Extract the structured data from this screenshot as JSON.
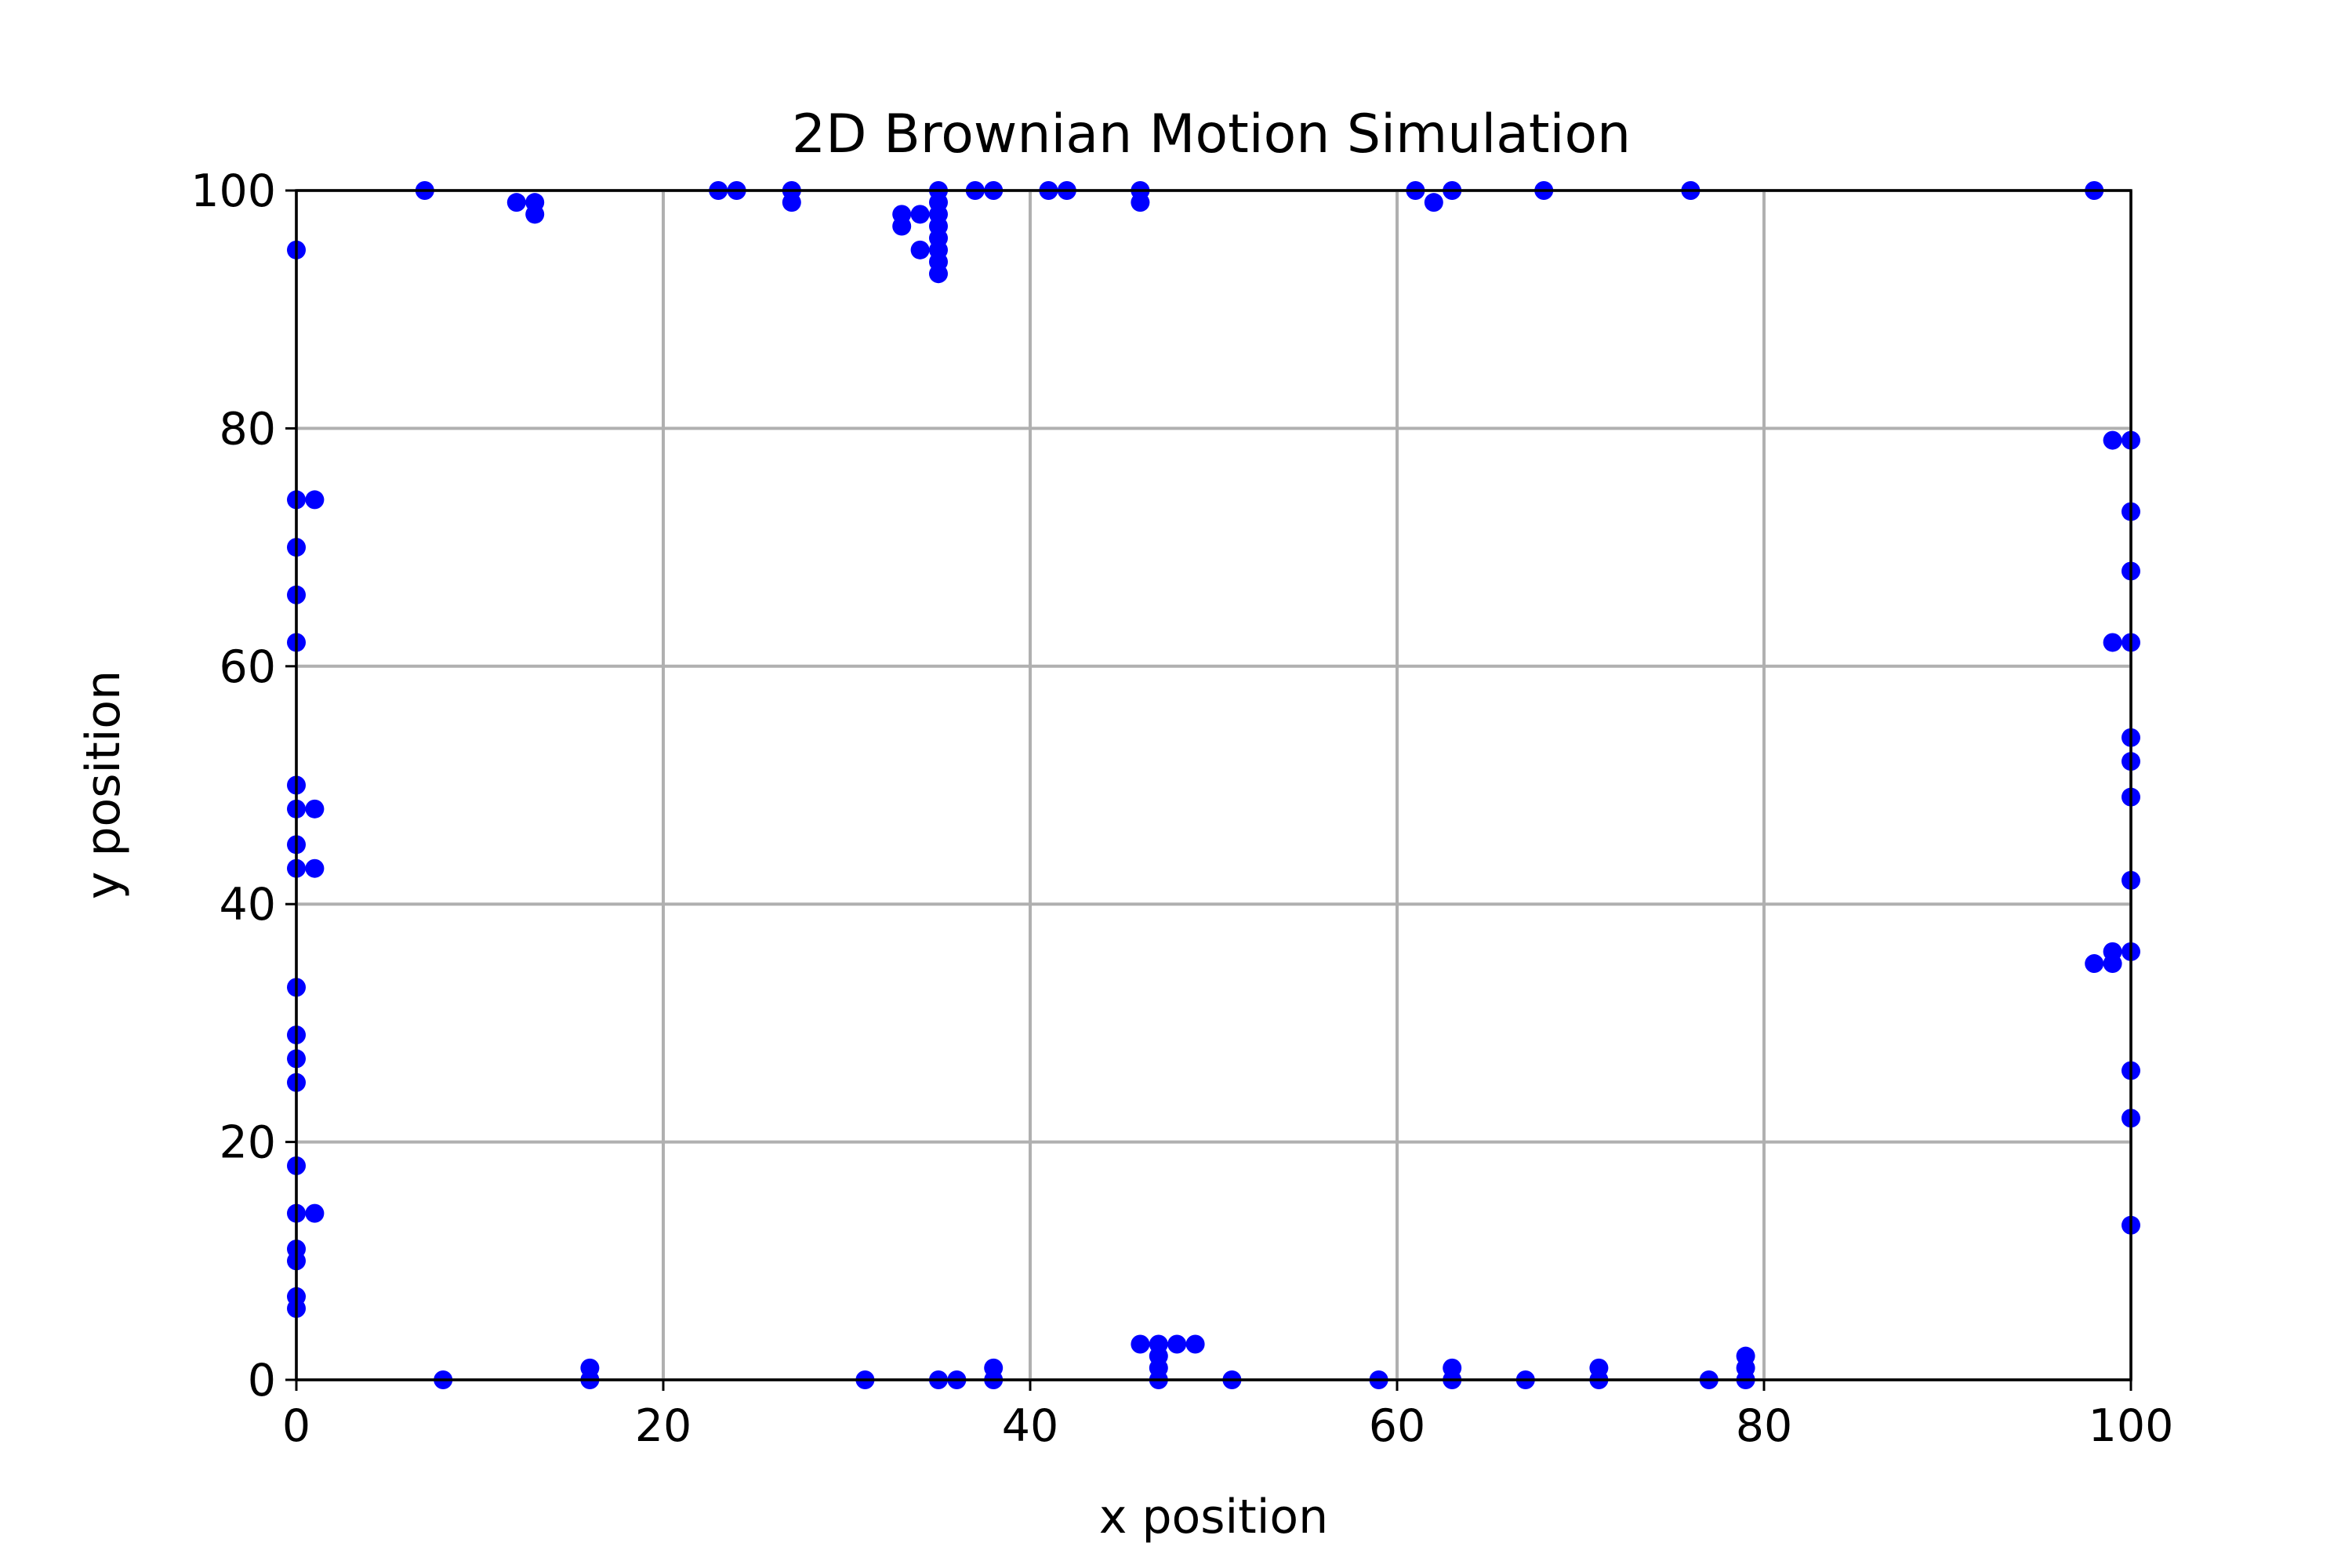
{
  "chart_data": {
    "type": "scatter",
    "title": "2D Brownian Motion Simulation",
    "xlabel": "x position",
    "ylabel": "y position",
    "xlim": [
      0,
      100
    ],
    "ylim": [
      0,
      100
    ],
    "x_ticks": [
      "0",
      "20",
      "40",
      "60",
      "80",
      "100"
    ],
    "y_ticks": [
      "0",
      "20",
      "40",
      "60",
      "80",
      "100"
    ],
    "x_tick_values": [
      0,
      20,
      40,
      60,
      80,
      100
    ],
    "y_tick_values": [
      0,
      20,
      40,
      60,
      80,
      100
    ],
    "grid": true,
    "marker_color": "#0000ff",
    "points": [
      [
        7,
        100
      ],
      [
        12,
        99
      ],
      [
        13,
        99
      ],
      [
        13,
        98
      ],
      [
        23,
        100
      ],
      [
        24,
        100
      ],
      [
        27,
        100
      ],
      [
        27,
        99
      ],
      [
        33,
        98
      ],
      [
        33,
        97
      ],
      [
        34,
        98
      ],
      [
        34,
        95
      ],
      [
        35,
        100
      ],
      [
        35,
        99
      ],
      [
        35,
        98
      ],
      [
        35,
        97
      ],
      [
        35,
        96
      ],
      [
        35,
        95
      ],
      [
        35,
        94
      ],
      [
        35,
        93
      ],
      [
        37,
        100
      ],
      [
        38,
        100
      ],
      [
        41,
        100
      ],
      [
        42,
        100
      ],
      [
        46,
        100
      ],
      [
        46,
        99
      ],
      [
        61,
        100
      ],
      [
        62,
        99
      ],
      [
        63,
        100
      ],
      [
        68,
        100
      ],
      [
        76,
        100
      ],
      [
        98,
        100
      ],
      [
        0,
        95
      ],
      [
        0,
        74
      ],
      [
        1,
        74
      ],
      [
        0,
        70
      ],
      [
        0,
        66
      ],
      [
        0,
        62
      ],
      [
        0,
        50
      ],
      [
        0,
        48
      ],
      [
        1,
        48
      ],
      [
        0,
        45
      ],
      [
        0,
        43
      ],
      [
        1,
        43
      ],
      [
        0,
        33
      ],
      [
        0,
        29
      ],
      [
        0,
        27
      ],
      [
        0,
        25
      ],
      [
        0,
        18
      ],
      [
        0,
        14
      ],
      [
        1,
        14
      ],
      [
        0,
        11
      ],
      [
        0,
        10
      ],
      [
        0,
        7
      ],
      [
        0,
        6
      ],
      [
        99,
        79
      ],
      [
        100,
        79
      ],
      [
        100,
        73
      ],
      [
        100,
        68
      ],
      [
        99,
        62
      ],
      [
        100,
        62
      ],
      [
        100,
        54
      ],
      [
        100,
        52
      ],
      [
        100,
        49
      ],
      [
        100,
        42
      ],
      [
        98,
        35
      ],
      [
        99,
        36
      ],
      [
        99,
        35
      ],
      [
        100,
        36
      ],
      [
        100,
        26
      ],
      [
        100,
        22
      ],
      [
        100,
        13
      ],
      [
        8,
        0
      ],
      [
        16,
        1
      ],
      [
        16,
        0
      ],
      [
        31,
        0
      ],
      [
        35,
        0
      ],
      [
        36,
        0
      ],
      [
        38,
        1
      ],
      [
        38,
        0
      ],
      [
        46,
        3
      ],
      [
        47,
        3
      ],
      [
        47,
        2
      ],
      [
        47,
        1
      ],
      [
        47,
        0
      ],
      [
        48,
        3
      ],
      [
        49,
        3
      ],
      [
        51,
        0
      ],
      [
        59,
        0
      ],
      [
        63,
        1
      ],
      [
        63,
        0
      ],
      [
        67,
        0
      ],
      [
        71,
        1
      ],
      [
        71,
        0
      ],
      [
        77,
        0
      ],
      [
        79,
        2
      ],
      [
        79,
        1
      ],
      [
        79,
        0
      ]
    ]
  }
}
